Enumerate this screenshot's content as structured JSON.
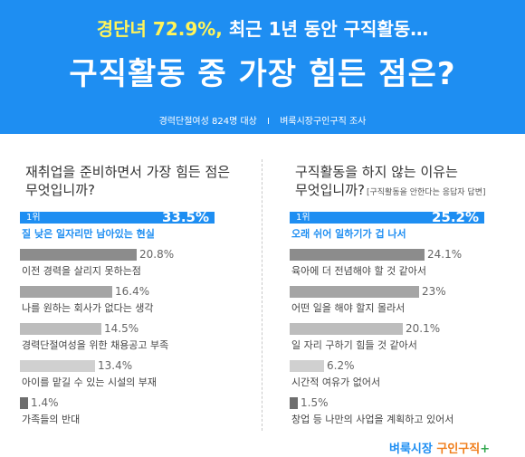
{
  "header": {
    "headline_em": "경단녀 72.9%,",
    "headline_rest": " 최근 1년 동안 구직활동…",
    "title": "구직활동 중 가장 힘든 점은?",
    "sub_left": "경력단절여성  824명 대상",
    "sub_sep": "I",
    "sub_right": "벼룩시장구인구직 조사"
  },
  "colors": {
    "header_bg": "#1e8ef2",
    "headline_highlight": "#fff45a",
    "top_bar": "#1e8ef2",
    "gray_bars": [
      "#8c8c8c",
      "#a5a5a5",
      "#bdbdbd",
      "#d0d0d0",
      "#6e6e6e"
    ],
    "logo_blue": "#1e8ef2",
    "logo_orange": "#f07d1a"
  },
  "chart_data": [
    {
      "type": "bar",
      "orientation": "horizontal",
      "title": "재취업을 준비하면서 가장 힘든 점은 무엇입니까?",
      "title_line1": "재취업을 준비하면서 가장 힘든 점은",
      "title_line2": "무엇입니까?",
      "note": "",
      "rank_label": "1위",
      "categories": [
        "질 낮은 일자리만 남아있는 현실",
        "이전 경력을 살리지 못하는점",
        "나를 원하는 회사가 없다는 생각",
        "경력단절여성을 위한 채용공고 부족",
        "아이를 맡길 수 있는 시설의 부재",
        "가족들의 반대"
      ],
      "values": [
        33.5,
        20.8,
        16.4,
        14.5,
        13.4,
        1.4
      ],
      "value_labels": [
        "33.5%",
        "20.8%",
        "16.4%",
        "14.5%",
        "13.4%",
        "1.4%"
      ],
      "unit": "%"
    },
    {
      "type": "bar",
      "orientation": "horizontal",
      "title": "구직활동을 하지 않는 이유는 무엇입니까?",
      "title_line1": "구직활동을 하지 않는 이유는",
      "title_line2": "무엇입니까?",
      "note": "[구직활동을 안한다는 응답자 답변]",
      "rank_label": "1위",
      "categories": [
        "오래 쉬어 일하기가 겁 나서",
        "육아에 더 전념해야 할 것 같아서",
        "어떤 일을 해야 할지 몰라서",
        "일 자리 구하기 힘들 것 같아서",
        "시간적 여유가 없어서",
        "창업 등 나만의 사업을 계획하고 있어서"
      ],
      "values": [
        25.2,
        24.1,
        23,
        20.1,
        6.2,
        1.5
      ],
      "value_labels": [
        "25.2%",
        "24.1%",
        "23%",
        "20.1%",
        "6.2%",
        "1.5%"
      ],
      "unit": "%"
    }
  ],
  "logo": {
    "part_a": "벼룩시장 ",
    "part_b": "구인구직",
    "plus": "+"
  }
}
